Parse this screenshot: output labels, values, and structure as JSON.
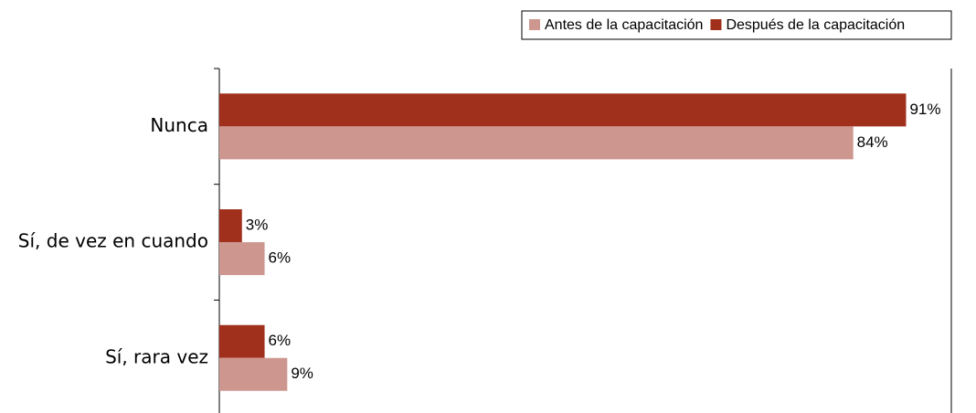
{
  "chart_data": {
    "type": "hbar",
    "categories": [
      "Nunca",
      "Sí, de vez en cuando",
      "Sí, rara vez"
    ],
    "series": [
      {
        "name": "Antes de la capacitación",
        "color": "#cd968f",
        "values": [
          84,
          6,
          9
        ],
        "value_labels": [
          "84%",
          "6%",
          "9%"
        ]
      },
      {
        "name": "Después de la capacitación",
        "color": "#a0301c",
        "values": [
          91,
          3,
          6
        ],
        "value_labels": [
          "91%",
          "3%",
          "6%"
        ]
      }
    ],
    "xlim": [
      0,
      97
    ],
    "legend": "top-right"
  }
}
